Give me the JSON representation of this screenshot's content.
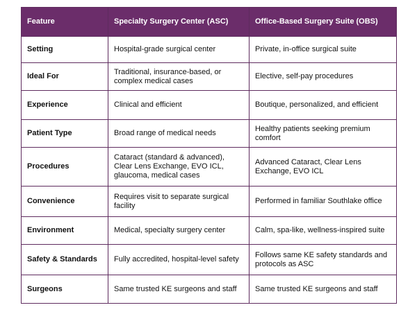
{
  "table": {
    "header": [
      "Feature",
      "Specialty Surgery Center (ASC)",
      "Office-Based Surgery Suite (OBS)"
    ],
    "rows": [
      [
        "Setting",
        "Hospital-grade surgical center",
        "Private, in-office surgical suite"
      ],
      [
        "Ideal For",
        "Traditional, insurance-based, or complex medical cases",
        "Elective, self-pay procedures"
      ],
      [
        "Experience",
        "Clinical and efficient",
        "Boutique, personalized, and efficient"
      ],
      [
        "Patient Type",
        "Broad range of medical needs",
        "Healthy patients seeking premium comfort"
      ],
      [
        "Procedures",
        "Cataract (standard & advanced), Clear Lens Exchange, EVO ICL, glaucoma, medical cases",
        "Advanced Cataract, Clear Lens Exchange, EVO ICL"
      ],
      [
        "Convenience",
        "Requires visit to separate surgical facility",
        "Performed in familiar Southlake office"
      ],
      [
        "Environment",
        "Medical, specialty surgery center",
        "Calm, spa-like, wellness-inspired suite"
      ],
      [
        "Safety & Standards",
        "Fully accredited, hospital-level safety",
        "Follows same KE safety standards and protocols as ASC"
      ],
      [
        "Surgeons",
        "Same trusted KE surgeons and staff",
        "Same trusted KE surgeons and staff"
      ]
    ]
  }
}
